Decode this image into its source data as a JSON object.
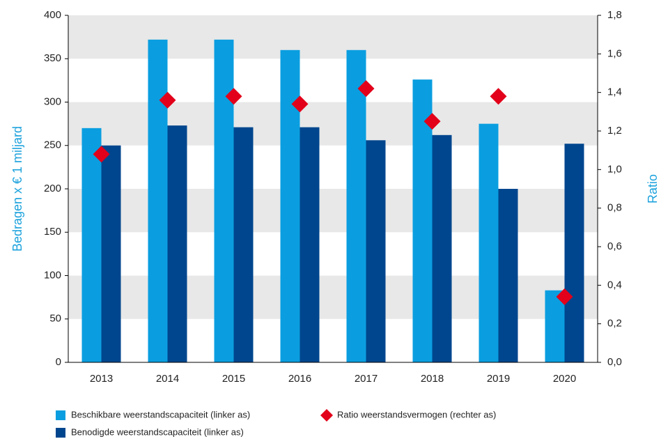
{
  "chart_data": {
    "type": "bar",
    "categories": [
      "2013",
      "2014",
      "2015",
      "2016",
      "2017",
      "2018",
      "2019",
      "2020"
    ],
    "series": [
      {
        "name": "Beschikbare weerstandscapaciteit (linker as)",
        "color": "#0a9ee0",
        "values": [
          270,
          372,
          372,
          360,
          360,
          326,
          275,
          83
        ]
      },
      {
        "name": "Benodigde weerstandscapaciteit (linker as)",
        "color": "#00468e",
        "values": [
          250,
          273,
          271,
          271,
          256,
          262,
          200,
          252
        ]
      },
      {
        "name": "Ratio weerstandsvermogen (rechter as)",
        "color": "#e2001a",
        "type": "scatter",
        "axis": "y2",
        "values": [
          1.08,
          1.36,
          1.38,
          1.34,
          1.42,
          1.25,
          1.38,
          0.34
        ]
      }
    ],
    "ylabel": "Bedragen x € 1 miljard",
    "y2label": "Ratio",
    "ylim": [
      0,
      400
    ],
    "yticks": [
      0,
      50,
      100,
      150,
      200,
      250,
      300,
      350,
      400
    ],
    "y2lim": [
      0,
      1.8
    ],
    "y2ticks": [
      {
        "value": 0,
        "label": "0,0"
      },
      {
        "value": 0.2,
        "label": "0,2"
      },
      {
        "value": 0.4,
        "label": "0,4"
      },
      {
        "value": 0.6,
        "label": "0,6"
      },
      {
        "value": 0.8,
        "label": "0,8"
      },
      {
        "value": 1.0,
        "label": "1,0"
      },
      {
        "value": 1.2,
        "label": "1,2"
      },
      {
        "value": 1.4,
        "label": "1,4"
      },
      {
        "value": 1.6,
        "label": "1,6"
      },
      {
        "value": 1.8,
        "label": "1,8"
      }
    ],
    "grid": "bands"
  }
}
